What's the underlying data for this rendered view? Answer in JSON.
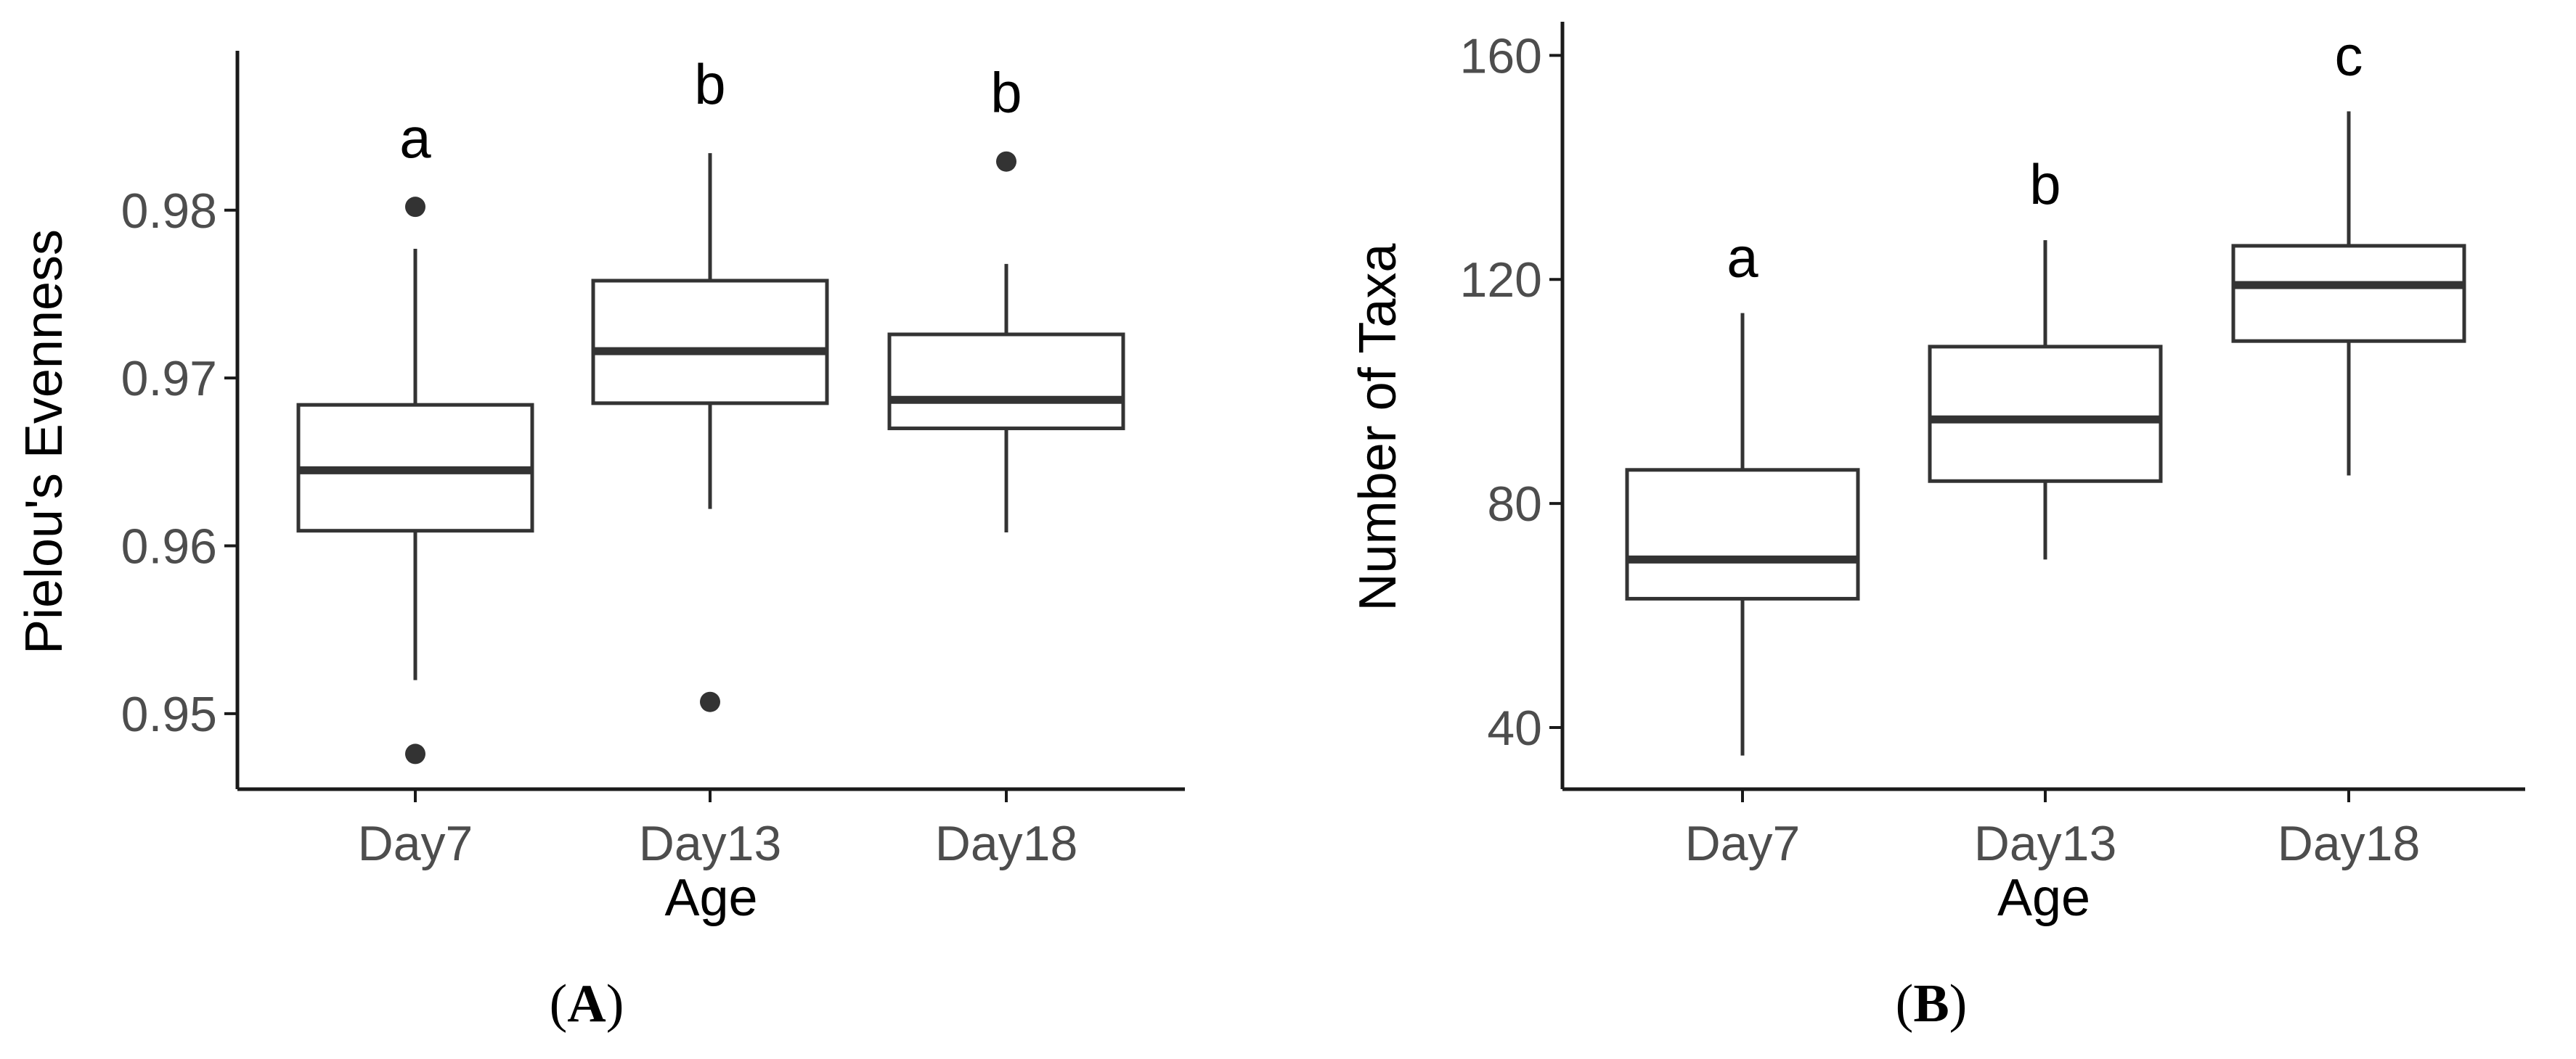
{
  "chart_data": [
    {
      "type": "box",
      "panel_label": "A",
      "xlabel": "Age",
      "ylabel": "Pielou's Evenness",
      "ylim": [
        0.9455,
        0.9895
      ],
      "yticks": [
        0.95,
        0.96,
        0.97,
        0.98
      ],
      "ytick_labels": [
        "0.95",
        "0.96",
        "0.97",
        "0.98"
      ],
      "categories": [
        "Day7",
        "Day13",
        "Day18"
      ],
      "boxes": [
        {
          "category": "Day7",
          "whisker_low": 0.952,
          "q1": 0.9609,
          "median": 0.9645,
          "q3": 0.9684,
          "whisker_high": 0.9777,
          "outliers": [
            0.9802,
            0.9476
          ],
          "letter": "a"
        },
        {
          "category": "Day13",
          "whisker_low": 0.9622,
          "q1": 0.9685,
          "median": 0.9716,
          "q3": 0.9758,
          "whisker_high": 0.9834,
          "outliers": [
            0.9507
          ],
          "letter": "b"
        },
        {
          "category": "Day18",
          "whisker_low": 0.9608,
          "q1": 0.967,
          "median": 0.9687,
          "q3": 0.9726,
          "whisker_high": 0.9768,
          "outliers": [
            0.9829
          ],
          "letter": "b"
        }
      ]
    },
    {
      "type": "box",
      "panel_label": "B",
      "xlabel": "Age",
      "ylabel": "Number of Taxa",
      "ylim": [
        29,
        166
      ],
      "yticks": [
        40,
        80,
        120,
        160
      ],
      "ytick_labels": [
        "40",
        "80",
        "120",
        "160"
      ],
      "categories": [
        "Day7",
        "Day13",
        "Day18"
      ],
      "boxes": [
        {
          "category": "Day7",
          "whisker_low": 35,
          "q1": 63,
          "median": 70,
          "q3": 86,
          "whisker_high": 114,
          "outliers": [],
          "letter": "a"
        },
        {
          "category": "Day13",
          "whisker_low": 70,
          "q1": 84,
          "median": 95,
          "q3": 108,
          "whisker_high": 127,
          "outliers": [],
          "letter": "b"
        },
        {
          "category": "Day18",
          "whisker_low": 85,
          "q1": 109,
          "median": 119,
          "q3": 126,
          "whisker_high": 150,
          "outliers": [],
          "letter": "c"
        }
      ]
    }
  ]
}
